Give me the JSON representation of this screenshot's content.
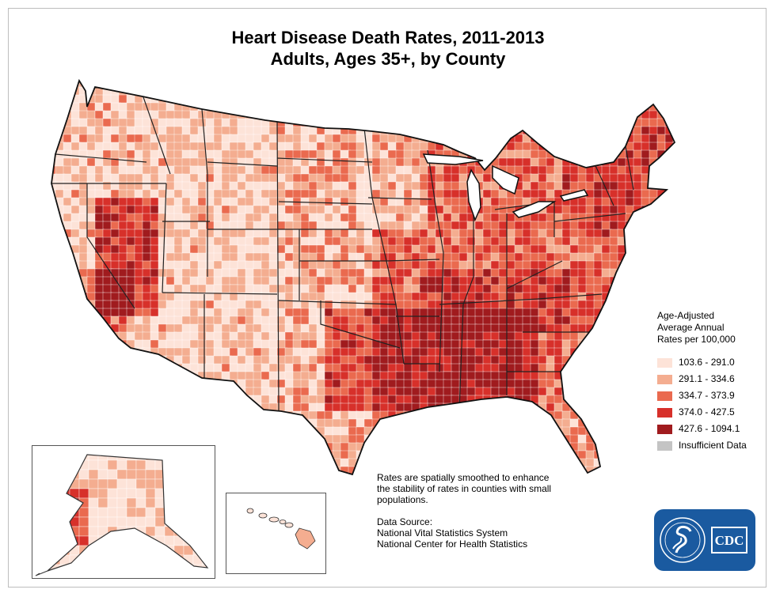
{
  "title": {
    "line1": "Heart Disease Death Rates, 2011-2013",
    "line2": "Adults, Ages 35+, by County"
  },
  "legend": {
    "heading_lines": [
      "Age-Adjusted",
      "Average Annual",
      "Rates per 100,000"
    ],
    "items": [
      {
        "label": "103.6 - 291.0",
        "color": "#fde3d8"
      },
      {
        "label": "291.1 - 334.6",
        "color": "#f4ad90"
      },
      {
        "label": "334.7 - 373.9",
        "color": "#ea6a4f"
      },
      {
        "label": "374.0 - 427.5",
        "color": "#d7302a"
      },
      {
        "label": "427.6 - 1094.1",
        "color": "#a01b1e"
      },
      {
        "label": "Insufficient Data",
        "color": "#c4c4c4"
      }
    ]
  },
  "note": {
    "lines": [
      "Rates are spatially smoothed to enhance",
      "the stability of rates in counties with small",
      "populations."
    ]
  },
  "source": {
    "lines": [
      "Data Source:",
      "National Vital Statistics System",
      "National Center for Health Statistics"
    ]
  },
  "logo": {
    "text": "CDC",
    "color": "#1a5aa0"
  },
  "regions": {
    "contiguous_us": "contiguous-united-states",
    "alaska": "alaska",
    "hawaii": "hawaii"
  }
}
